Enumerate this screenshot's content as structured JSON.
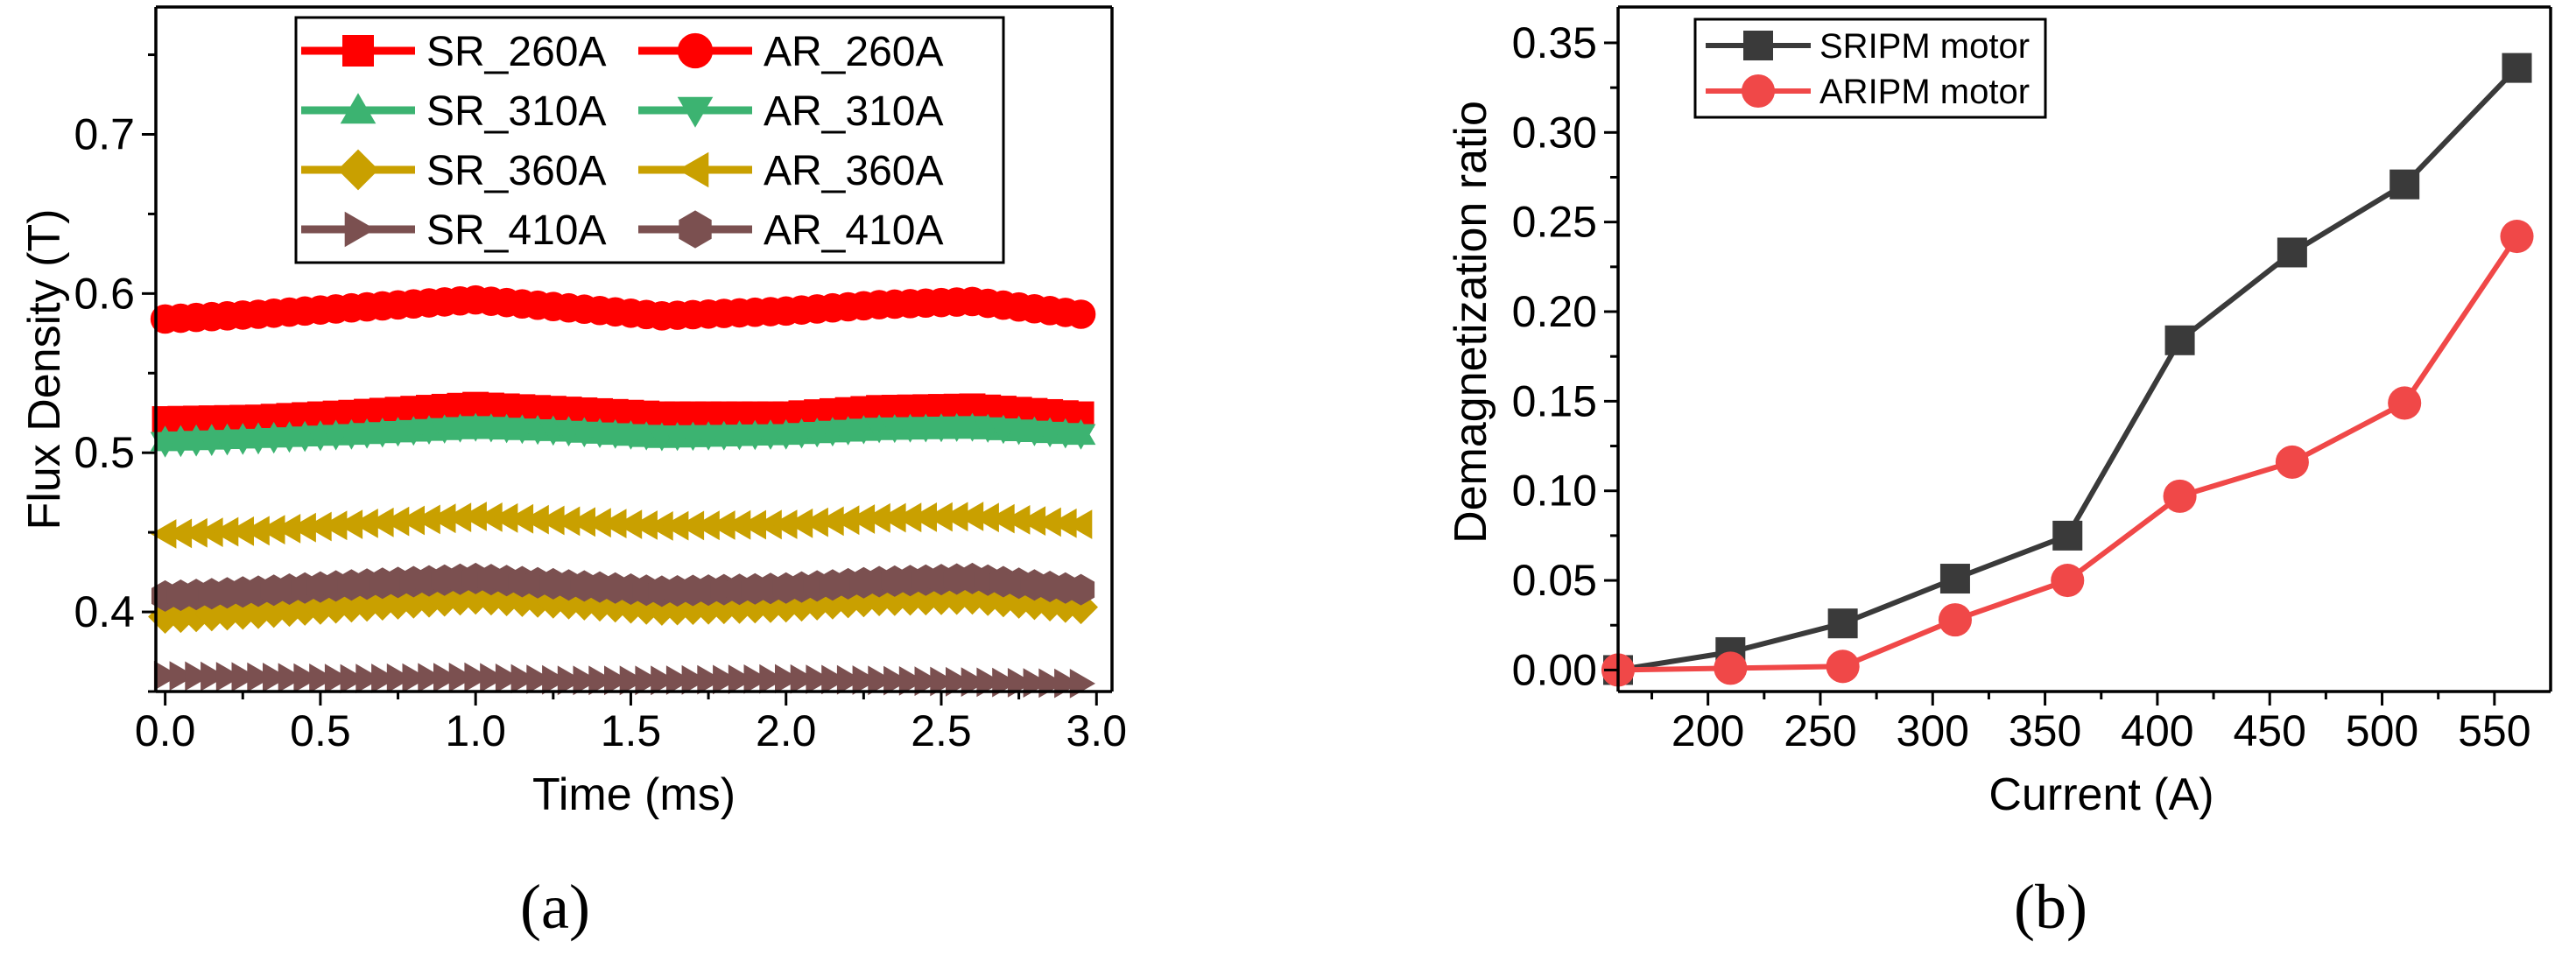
{
  "chart_data": [
    {
      "type": "line",
      "panel_label": "a",
      "xlabel": "Time (ms)",
      "ylabel": "Flux Density (T)",
      "xlim": [
        -0.03,
        3.05
      ],
      "ylim": [
        0.35,
        0.78
      ],
      "xticks": [
        "0.0",
        "0.5",
        "1.0",
        "1.5",
        "2.0",
        "2.5",
        "3.0"
      ],
      "yticks": [
        "0.4",
        "0.5",
        "0.6",
        "0.7"
      ],
      "x": [
        0.0,
        0.3,
        0.6,
        1.0,
        1.3,
        1.6,
        2.0,
        2.3,
        2.6,
        2.95
      ],
      "series": [
        {
          "name": "SR_260A",
          "color": "#ff0000",
          "marker": "square",
          "values": [
            0.521,
            0.522,
            0.525,
            0.53,
            0.527,
            0.524,
            0.524,
            0.528,
            0.529,
            0.524
          ]
        },
        {
          "name": "AR_260A",
          "color": "#ff0000",
          "marker": "circle",
          "values": [
            0.584,
            0.587,
            0.591,
            0.596,
            0.591,
            0.586,
            0.589,
            0.593,
            0.595,
            0.587
          ]
        },
        {
          "name": "SR_310A",
          "color": "#3cb371",
          "marker": "triangle-up",
          "values": [
            0.508,
            0.51,
            0.512,
            0.516,
            0.514,
            0.51,
            0.512,
            0.515,
            0.516,
            0.512
          ]
        },
        {
          "name": "AR_310A",
          "color": "#3cb371",
          "marker": "triangle-down",
          "values": [
            0.506,
            0.508,
            0.511,
            0.516,
            0.513,
            0.51,
            0.511,
            0.515,
            0.516,
            0.511
          ]
        },
        {
          "name": "SR_360A",
          "color": "#c9a000",
          "marker": "diamond",
          "values": [
            0.397,
            0.4,
            0.404,
            0.409,
            0.406,
            0.402,
            0.404,
            0.408,
            0.409,
            0.403
          ]
        },
        {
          "name": "AR_360A",
          "color": "#c9a000",
          "marker": "triangle-left",
          "values": [
            0.449,
            0.451,
            0.455,
            0.46,
            0.457,
            0.454,
            0.455,
            0.459,
            0.46,
            0.455
          ]
        },
        {
          "name": "SR_410A",
          "color": "#7b5050",
          "marker": "triangle-right",
          "values": [
            0.36,
            0.359,
            0.358,
            0.359,
            0.357,
            0.357,
            0.358,
            0.357,
            0.356,
            0.355
          ]
        },
        {
          "name": "AR_410A",
          "color": "#7b5050",
          "marker": "hexagon",
          "values": [
            0.41,
            0.413,
            0.417,
            0.421,
            0.417,
            0.413,
            0.415,
            0.419,
            0.421,
            0.414
          ]
        }
      ]
    },
    {
      "type": "line",
      "panel_label": "b",
      "xlabel": "Current (A)",
      "ylabel": "Demagnetization ratio",
      "xlim": [
        160,
        575
      ],
      "ylim": [
        -0.012,
        0.37
      ],
      "xticks": [
        "200",
        "250",
        "300",
        "350",
        "400",
        "450",
        "500",
        "550"
      ],
      "yticks": [
        "0.00",
        "0.05",
        "0.10",
        "0.15",
        "0.20",
        "0.25",
        "0.30",
        "0.35"
      ],
      "x": [
        160,
        210,
        260,
        310,
        360,
        410,
        460,
        510,
        560
      ],
      "series": [
        {
          "name": "SRIPM motor",
          "color": "#3a3a3a",
          "marker": "square",
          "values": [
            0.0,
            0.01,
            0.026,
            0.051,
            0.075,
            0.184,
            0.233,
            0.271,
            0.336
          ]
        },
        {
          "name": "ARIPM motor",
          "color": "#f04848",
          "marker": "circle",
          "values": [
            0.0,
            0.001,
            0.002,
            0.028,
            0.05,
            0.097,
            0.116,
            0.149,
            0.242
          ]
        }
      ]
    }
  ],
  "captions": {
    "a": "(a)",
    "b": "(b)"
  }
}
